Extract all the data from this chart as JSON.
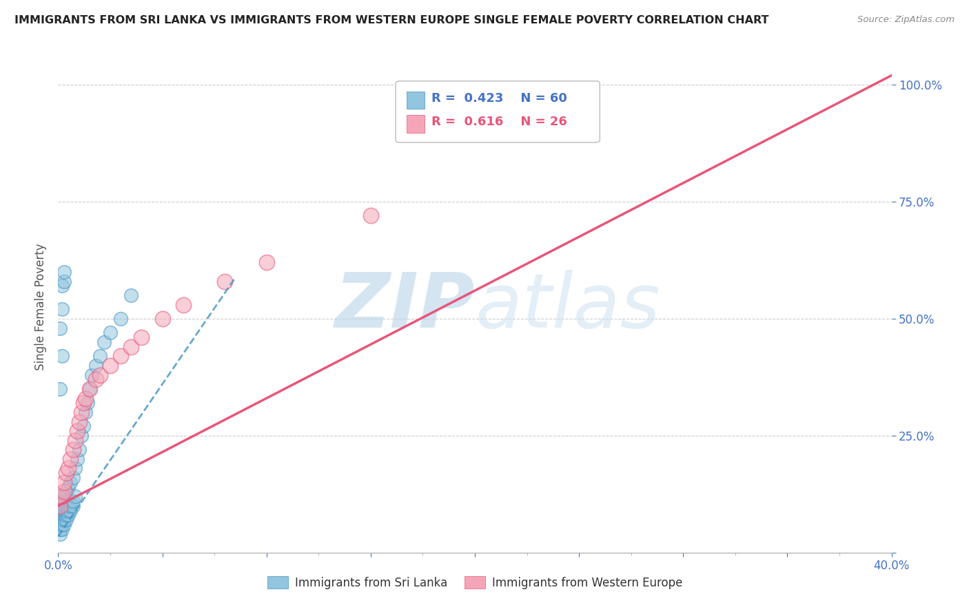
{
  "title": "IMMIGRANTS FROM SRI LANKA VS IMMIGRANTS FROM WESTERN EUROPE SINGLE FEMALE POVERTY CORRELATION CHART",
  "source": "Source: ZipAtlas.com",
  "ylabel": "Single Female Poverty",
  "legend1_label": "Immigrants from Sri Lanka",
  "legend2_label": "Immigrants from Western Europe",
  "R1": "0.423",
  "N1": "60",
  "R2": "0.616",
  "N2": "26",
  "color1": "#92c5de",
  "color2": "#f4a6b8",
  "trendline1_color": "#4393c3",
  "trendline2_color": "#e8557a",
  "watermark_zip": "ZIP",
  "watermark_atlas": "atlas",
  "blue_scatter_x": [
    0.001,
    0.001,
    0.001,
    0.001,
    0.001,
    0.002,
    0.002,
    0.002,
    0.002,
    0.002,
    0.002,
    0.002,
    0.003,
    0.003,
    0.003,
    0.003,
    0.003,
    0.003,
    0.003,
    0.004,
    0.004,
    0.004,
    0.004,
    0.004,
    0.004,
    0.005,
    0.005,
    0.005,
    0.005,
    0.005,
    0.006,
    0.006,
    0.006,
    0.006,
    0.007,
    0.007,
    0.007,
    0.008,
    0.008,
    0.009,
    0.01,
    0.011,
    0.012,
    0.013,
    0.014,
    0.015,
    0.016,
    0.018,
    0.02,
    0.022,
    0.025,
    0.03,
    0.035,
    0.001,
    0.002,
    0.001,
    0.002,
    0.002,
    0.003,
    0.003
  ],
  "blue_scatter_y": [
    0.04,
    0.05,
    0.06,
    0.07,
    0.08,
    0.05,
    0.06,
    0.07,
    0.08,
    0.09,
    0.1,
    0.12,
    0.06,
    0.07,
    0.08,
    0.09,
    0.1,
    0.11,
    0.12,
    0.07,
    0.08,
    0.09,
    0.1,
    0.11,
    0.13,
    0.08,
    0.09,
    0.1,
    0.11,
    0.14,
    0.09,
    0.1,
    0.11,
    0.15,
    0.1,
    0.11,
    0.16,
    0.12,
    0.18,
    0.2,
    0.22,
    0.25,
    0.27,
    0.3,
    0.32,
    0.35,
    0.38,
    0.4,
    0.42,
    0.45,
    0.47,
    0.5,
    0.55,
    0.35,
    0.42,
    0.48,
    0.52,
    0.57,
    0.58,
    0.6
  ],
  "pink_scatter_x": [
    0.001,
    0.002,
    0.003,
    0.003,
    0.004,
    0.005,
    0.006,
    0.007,
    0.008,
    0.009,
    0.01,
    0.011,
    0.012,
    0.013,
    0.015,
    0.018,
    0.02,
    0.025,
    0.03,
    0.035,
    0.04,
    0.05,
    0.06,
    0.08,
    0.1,
    0.15
  ],
  "pink_scatter_y": [
    0.1,
    0.12,
    0.13,
    0.15,
    0.17,
    0.18,
    0.2,
    0.22,
    0.24,
    0.26,
    0.28,
    0.3,
    0.32,
    0.33,
    0.35,
    0.37,
    0.38,
    0.4,
    0.42,
    0.44,
    0.46,
    0.5,
    0.53,
    0.58,
    0.62,
    0.72
  ],
  "xlim": [
    0.0,
    0.4
  ],
  "ylim": [
    0.0,
    1.05
  ],
  "xtick_step": 0.05,
  "ytick_step": 0.25,
  "figsize": [
    14.06,
    8.92
  ],
  "dpi": 100,
  "blue_trendline_x": [
    0.0,
    0.085
  ],
  "pink_trendline_x": [
    0.0,
    0.4
  ],
  "blue_intercept": 0.035,
  "blue_slope": 6.5,
  "pink_intercept": 0.1,
  "pink_slope": 2.3
}
